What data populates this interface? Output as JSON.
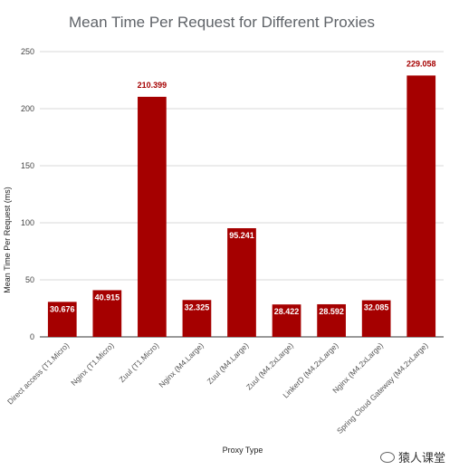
{
  "colors": {
    "bar": "#a50000",
    "label_inside": "#ffffff",
    "label_outside": "#a50000"
  },
  "chart_data": {
    "type": "bar",
    "title": "Mean Time Per Request for Different Proxies",
    "xlabel": "Proxy Type",
    "ylabel": "Mean Time Per Request (ms)",
    "ylim": [
      0,
      250
    ],
    "yticks": [
      0,
      50,
      100,
      150,
      200,
      250
    ],
    "grid": true,
    "categories": [
      "Direct access (T1.Micro)",
      "Nginx (T1.Micro)",
      "Zuul (T1.Micro)",
      "Nginx (M4.Large)",
      "Zuul (M4.Large)",
      "Zuul (M4.2xLarge)",
      "LinkerD (M4.2xLarge)",
      "Nginx (M4.2xLarge)",
      "Spring Cloud Gateway (M4.2xLarge)"
    ],
    "values": [
      30.676,
      40.915,
      210.399,
      32.325,
      95.241,
      28.422,
      28.592,
      32.085,
      229.058
    ],
    "data_labels": [
      "30.676",
      "40.915",
      "210.399",
      "32.325",
      "95.241",
      "28.422",
      "28.592",
      "32.085",
      "229.058"
    ]
  },
  "watermark": {
    "text": "猿人课堂"
  }
}
